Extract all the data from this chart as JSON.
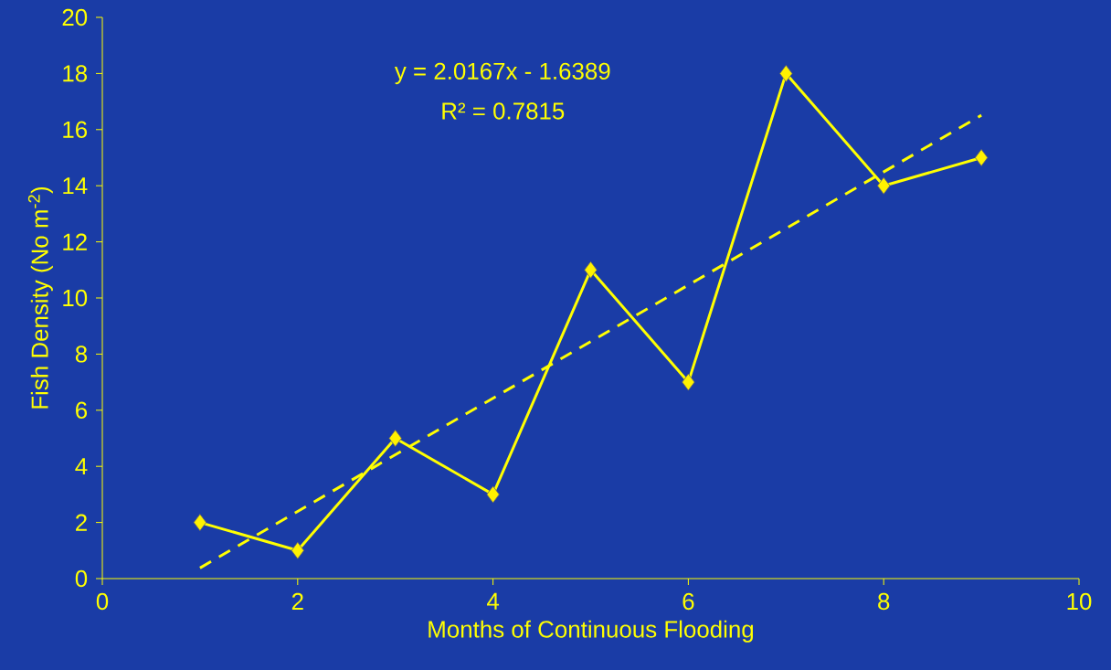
{
  "chart_data": {
    "type": "line",
    "xlabel": "Months of Continuous Flooding",
    "ylabel": "Fish Density (No m$^{-2}$)",
    "annotations": [
      "y = 2.0167x - 1.6389",
      "R² = 0.7815"
    ],
    "x": [
      1,
      2,
      3,
      4,
      5,
      6,
      7,
      8,
      9
    ],
    "series": [
      {
        "color": "#ffff00",
        "values": [
          2,
          1,
          5,
          3,
          11,
          7,
          18,
          14,
          15
        ],
        "marker": "diamond",
        "line_style": "solid"
      },
      {
        "type": "line",
        "color": "#ffff00",
        "x": [
          1,
          9
        ],
        "values": [
          0.38,
          16.51
        ],
        "marker": "none",
        "line_style": "dashed"
      }
    ],
    "xlim": [
      0,
      10
    ],
    "ylim": [
      0,
      20
    ],
    "xticks": [
      0,
      2,
      4,
      6,
      8,
      10
    ],
    "yticks": [
      0,
      2,
      4,
      6,
      8,
      10,
      12,
      14,
      16,
      18,
      20
    ],
    "grid": false
  }
}
